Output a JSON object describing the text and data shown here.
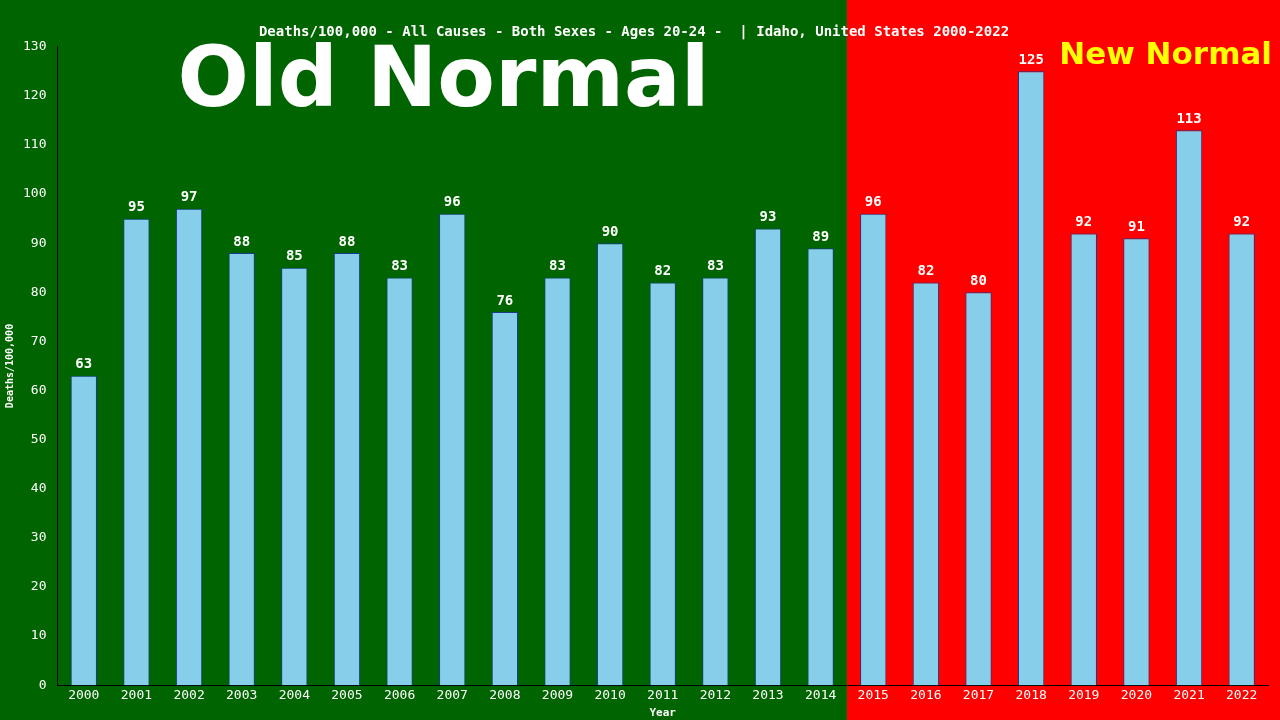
{
  "chart_data": {
    "type": "bar",
    "title": "Deaths/100,000 - All Causes - Both Sexes - Ages 20-24 -  | Idaho, United States 2000-2022",
    "xlabel": "Year",
    "ylabel": "Deaths/100,000",
    "categories": [
      "2000",
      "2001",
      "2002",
      "2003",
      "2004",
      "2005",
      "2006",
      "2007",
      "2008",
      "2009",
      "2010",
      "2011",
      "2012",
      "2013",
      "2014",
      "2015",
      "2016",
      "2017",
      "2018",
      "2019",
      "2020",
      "2021",
      "2022"
    ],
    "values": [
      63,
      95,
      97,
      88,
      85,
      88,
      83,
      96,
      76,
      83,
      90,
      82,
      83,
      93,
      89,
      96,
      82,
      80,
      125,
      92,
      91,
      113,
      92
    ],
    "color": "#87ceeb",
    "ylim": [
      0,
      130
    ],
    "yticks": [
      0,
      10,
      20,
      30,
      40,
      50,
      60,
      70,
      80,
      90,
      100,
      110,
      120,
      130
    ],
    "data_labels": true,
    "grid": false,
    "bands": [
      {
        "axis": "x",
        "from": "2000",
        "to": "2014",
        "label": "Old Normal",
        "color": "#006400"
      },
      {
        "axis": "x",
        "from": "2015",
        "to": "2022",
        "label": "New Normal",
        "color": "#ff0000"
      }
    ]
  }
}
